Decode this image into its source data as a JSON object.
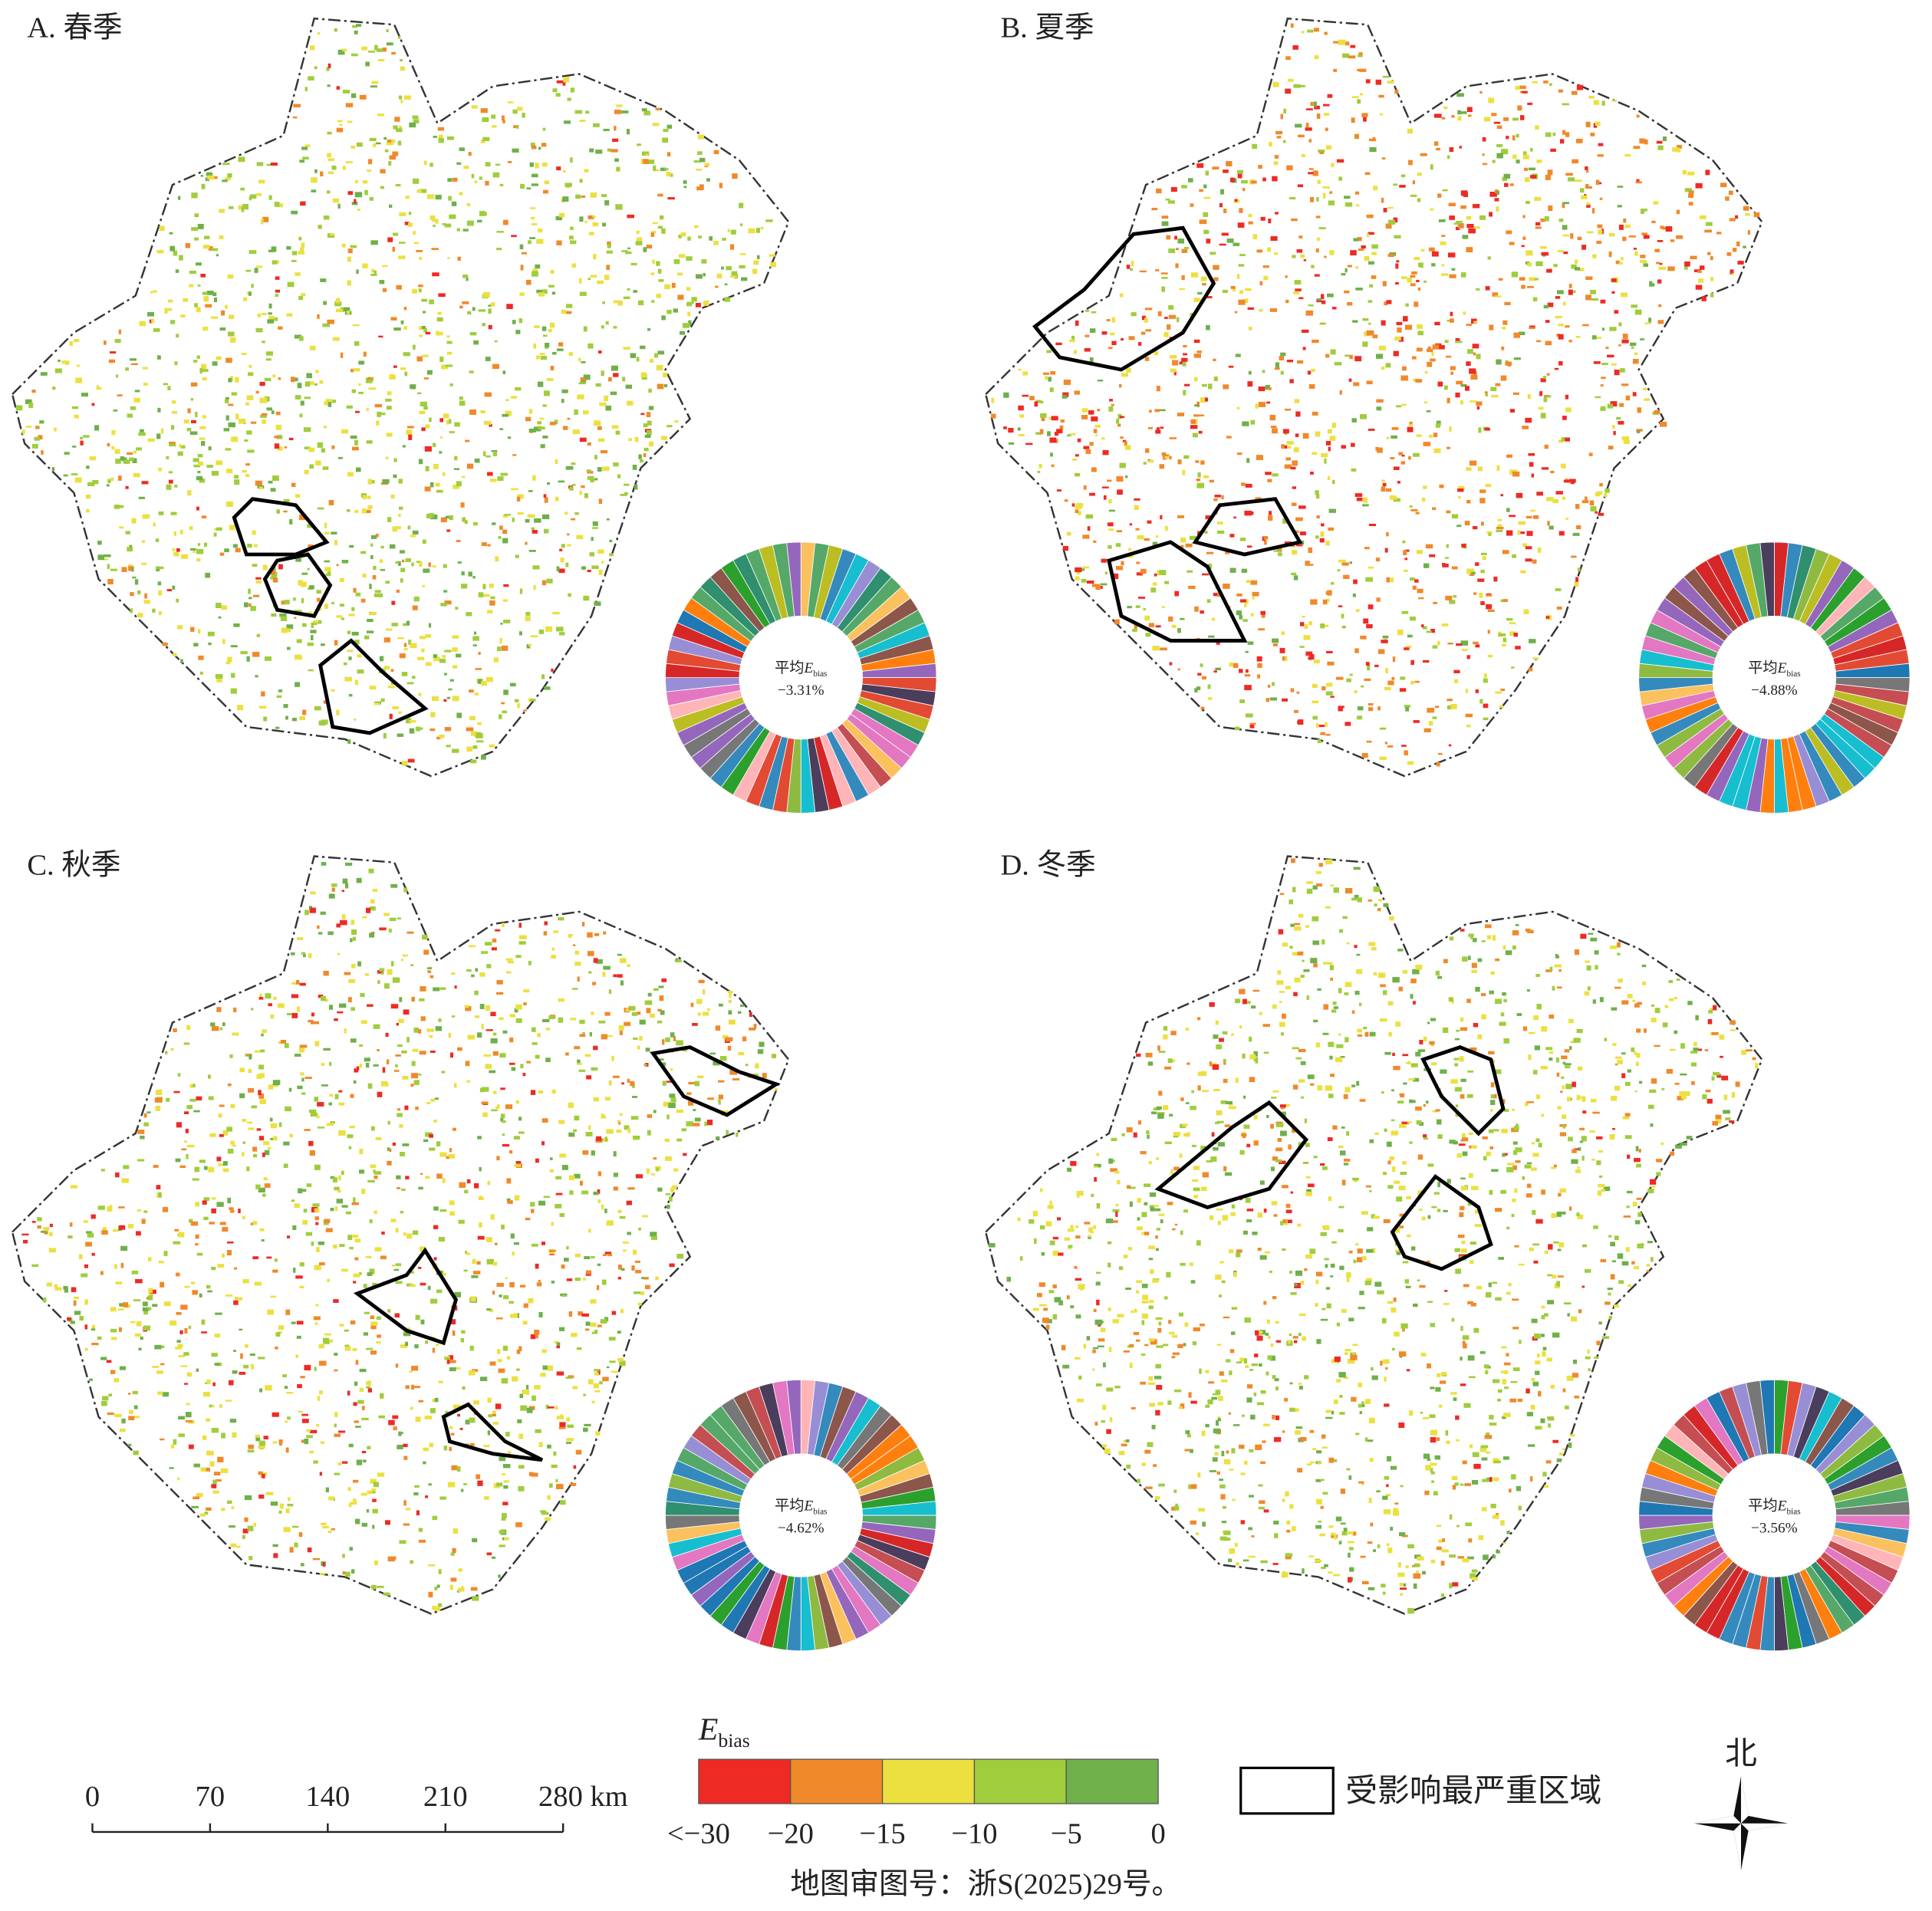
{
  "panels": [
    {
      "title": "A. 春季",
      "center_label": "平均",
      "center_symbol": "E",
      "center_sub": "bias",
      "mean": "−3.31%"
    },
    {
      "title": "B. 夏季",
      "center_label": "平均",
      "center_symbol": "E",
      "center_sub": "bias",
      "mean": "−4.88%"
    },
    {
      "title": "C. 秋季",
      "center_label": "平均",
      "center_symbol": "E",
      "center_sub": "bias",
      "mean": "−4.62%"
    },
    {
      "title": "D. 冬季",
      "center_label": "平均",
      "center_symbol": "E",
      "center_sub": "bias",
      "mean": "−3.56%"
    }
  ],
  "scale_bar": {
    "ticks": [
      "0",
      "70",
      "140",
      "210",
      "280 km"
    ]
  },
  "legend": {
    "symbol": "E",
    "sub": "bias",
    "colors": [
      "#ee2a24",
      "#f0892a",
      "#ece040",
      "#9fcd3c",
      "#6fb04a"
    ],
    "ticks": [
      "<−30",
      "−20",
      "−15",
      "−10",
      "−5",
      "0"
    ]
  },
  "region_legend": "受影响最严重区域",
  "north": "北",
  "footer": "地图审图号：浙S(2025)29号。"
}
